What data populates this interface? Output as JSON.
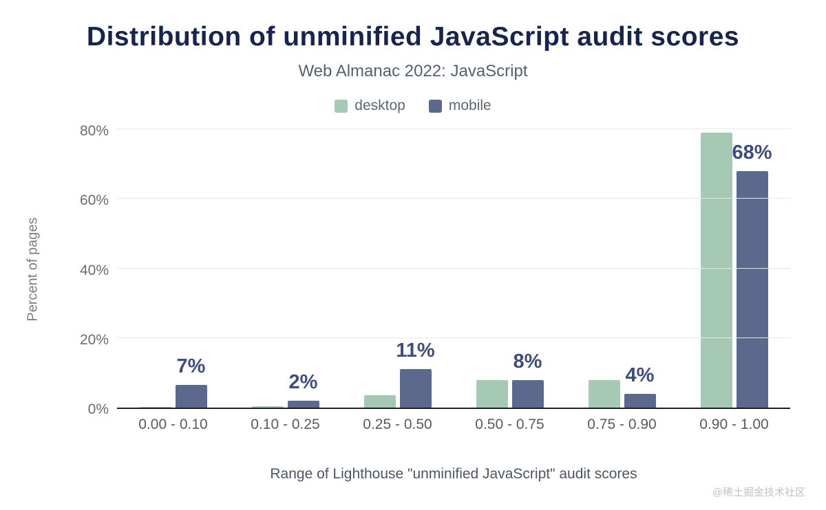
{
  "title": "Distribution of unminified JavaScript audit scores",
  "subtitle": "Web Almanac 2022: JavaScript",
  "legend": [
    {
      "label": "desktop",
      "color": "#a6c9b5"
    },
    {
      "label": "mobile",
      "color": "#5b6a8c"
    }
  ],
  "colors": {
    "desktop": "#a6c9b5",
    "mobile": "#5b6a8c",
    "title": "#17244e",
    "data_label": "#3e4d80"
  },
  "chart_data": {
    "type": "bar",
    "title": "Distribution of unminified JavaScript audit scores",
    "subtitle": "Web Almanac 2022: JavaScript",
    "categories": [
      "0.00 - 0.10",
      "0.10 - 0.25",
      "0.25 - 0.50",
      "0.50 - 0.75",
      "0.75 - 0.90",
      "0.90 - 1.00"
    ],
    "series": [
      {
        "name": "desktop",
        "color": "#a6c9b5",
        "values": [
          0.2,
          0.3,
          3.5,
          8,
          8,
          79
        ]
      },
      {
        "name": "mobile",
        "color": "#5b6a8c",
        "values": [
          6.5,
          2,
          11,
          8,
          4,
          68
        ]
      }
    ],
    "data_labels": [
      "7%",
      "2%",
      "11%",
      "8%",
      "4%",
      "68%"
    ],
    "data_labels_series": "mobile",
    "xlabel": "Range of Lighthouse \"unminified JavaScript\" audit scores",
    "ylabel": "Percent of pages",
    "yticks": [
      "0%",
      "20%",
      "40%",
      "60%",
      "80%"
    ],
    "ytick_values": [
      0,
      20,
      40,
      60,
      80
    ],
    "ylim": [
      0,
      80
    ],
    "grid": true,
    "legend_position": "top"
  },
  "watermark": "@稀土掘金技术社区"
}
